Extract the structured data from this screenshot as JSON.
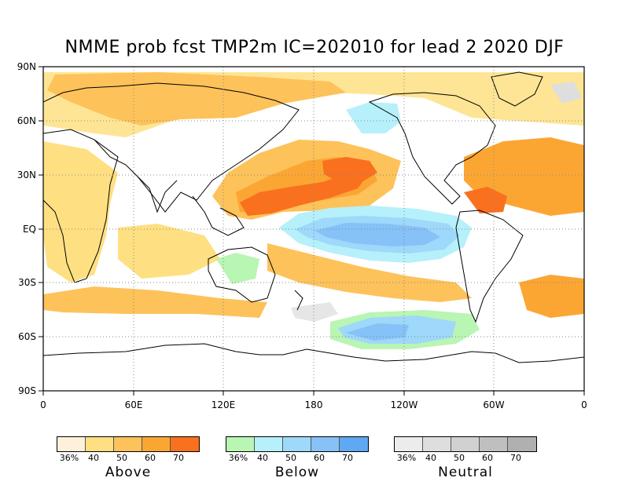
{
  "title": "NMME prob fcst TMP2m IC=202010 for lead 2 2020 DJF",
  "map": {
    "projection": "cylindrical equidistant, 0-360 longitude",
    "grid_lines": "dotted, every 60 degrees longitude and 30 degrees latitude",
    "lat_labels": [
      "90N",
      "60N",
      "30N",
      "EQ",
      "30S",
      "60S",
      "90S"
    ],
    "lon_labels": [
      "0",
      "60E",
      "120E",
      "180",
      "120W",
      "60W",
      "0"
    ],
    "colors": {
      "above": [
        "#fdf1dc",
        "#fee082",
        "#fdc25a",
        "#fba633",
        "#f9701e"
      ],
      "below": [
        "#b9f5b3",
        "#b6f0fb",
        "#9ed8fa",
        "#86c1f7",
        "#5fa8f2"
      ],
      "neutral": [
        "#ececec",
        "#dedede",
        "#d1d1d1",
        "#bfbfbf",
        "#b0b0b0"
      ]
    }
  },
  "legends": [
    {
      "label": "Above",
      "ticks": [
        "36%",
        "40",
        "50",
        "60",
        "70"
      ]
    },
    {
      "label": "Below",
      "ticks": [
        "36%",
        "40",
        "50",
        "60",
        "70"
      ]
    },
    {
      "label": "Neutral",
      "ticks": [
        "36%",
        "40",
        "50",
        "60",
        "70"
      ]
    }
  ]
}
